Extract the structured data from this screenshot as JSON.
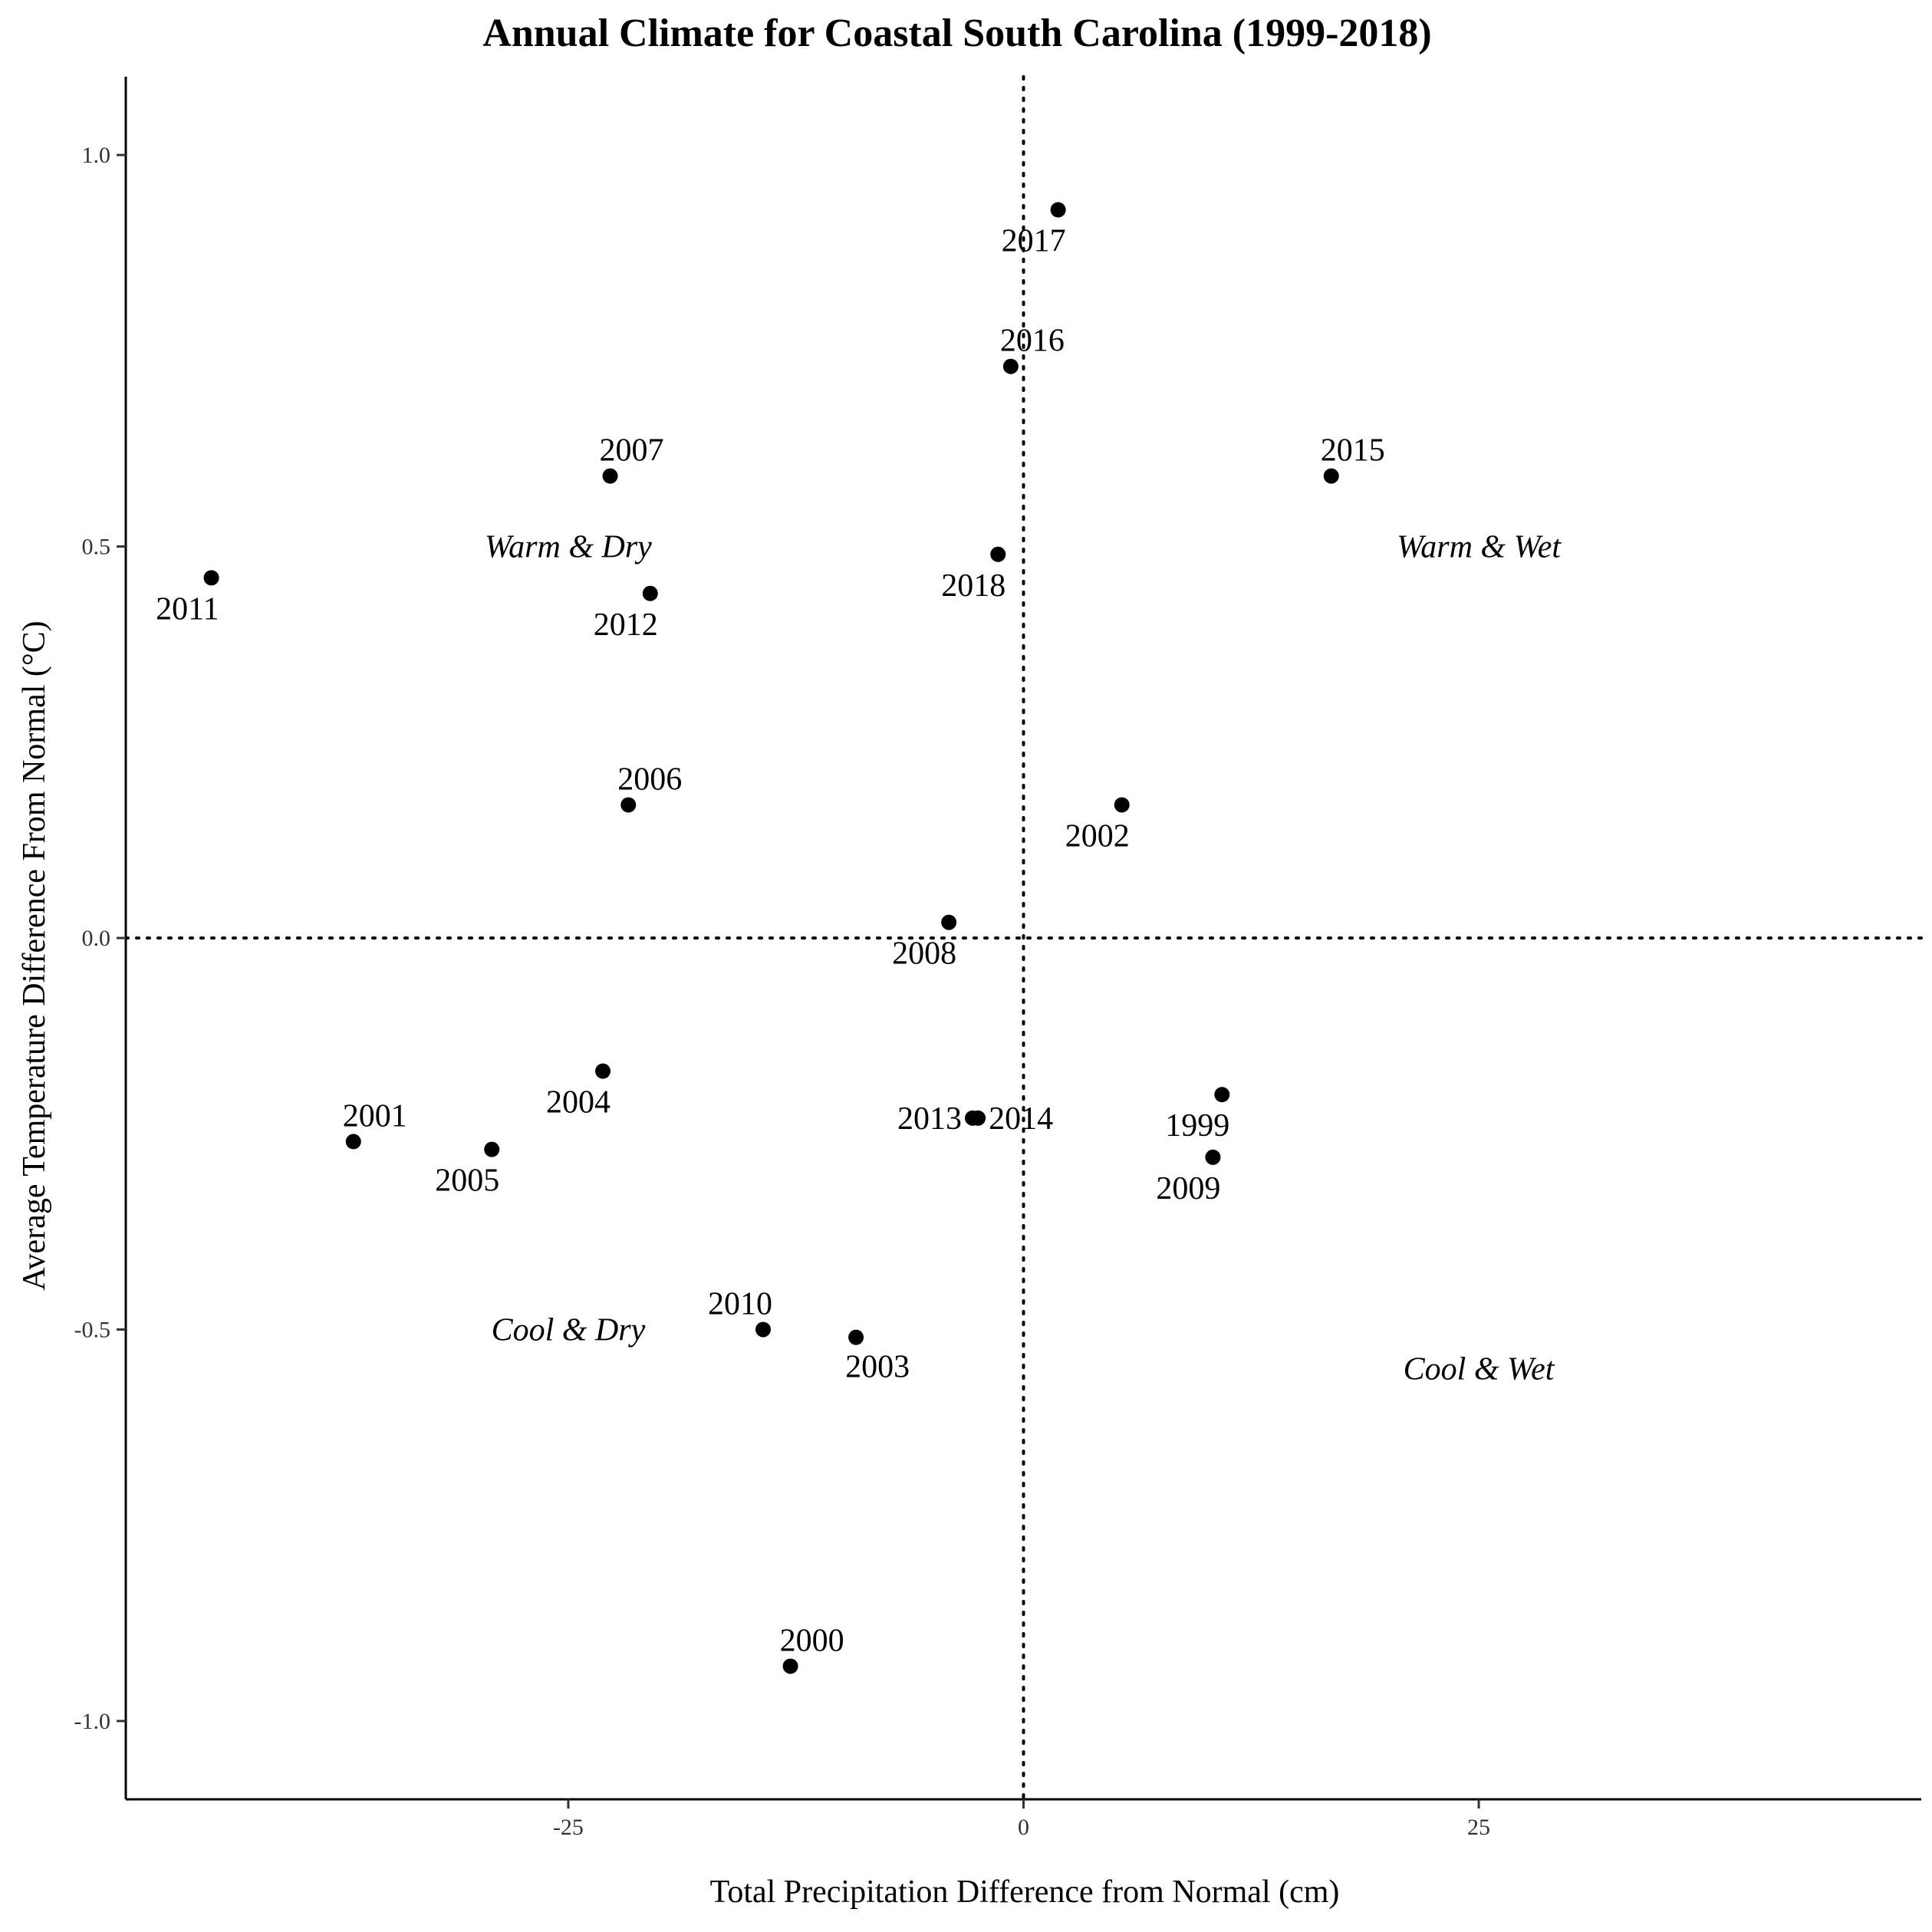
{
  "chart_data": {
    "type": "scatter",
    "title": "Annual Climate for Coastal South Carolina (1999-2018)",
    "xlabel": "Total Precipitation Difference from Normal (cm)",
    "ylabel": "Average Temperature Difference From Normal (°C)",
    "xlim": [
      -49.3,
      49.3
    ],
    "ylim": [
      -1.1,
      1.1
    ],
    "x_ticks": [
      {
        "value": -25,
        "label": "-25"
      },
      {
        "value": 0,
        "label": "0"
      },
      {
        "value": 25,
        "label": "25"
      }
    ],
    "y_ticks": [
      {
        "value": 1.0,
        "label": "1.0"
      },
      {
        "value": 0.5,
        "label": "0.5"
      },
      {
        "value": 0.0,
        "label": "0.0"
      },
      {
        "value": -0.5,
        "label": "-0.5"
      },
      {
        "value": -1.0,
        "label": "-1.0"
      }
    ],
    "reference_lines": {
      "x": 0,
      "y": 0,
      "style": "dotted"
    },
    "grid": false,
    "points": [
      {
        "label": "1999",
        "x": 10.9,
        "y": -0.2,
        "label_pos": "below-left"
      },
      {
        "label": "2000",
        "x": -12.8,
        "y": -0.93,
        "label_pos": "above-right"
      },
      {
        "label": "2001",
        "x": -36.8,
        "y": -0.26,
        "label_pos": "above-right"
      },
      {
        "label": "2002",
        "x": 5.4,
        "y": 0.17,
        "label_pos": "below-left"
      },
      {
        "label": "2003",
        "x": -9.2,
        "y": -0.51,
        "label_pos": "below-right"
      },
      {
        "label": "2004",
        "x": -23.1,
        "y": -0.17,
        "label_pos": "below-left"
      },
      {
        "label": "2005",
        "x": -29.2,
        "y": -0.27,
        "label_pos": "below-left"
      },
      {
        "label": "2006",
        "x": -21.7,
        "y": 0.17,
        "label_pos": "above-right"
      },
      {
        "label": "2007",
        "x": -22.7,
        "y": 0.59,
        "label_pos": "above-right"
      },
      {
        "label": "2008",
        "x": -4.1,
        "y": 0.02,
        "label_pos": "below-left"
      },
      {
        "label": "2009",
        "x": 10.4,
        "y": -0.28,
        "label_pos": "below-left"
      },
      {
        "label": "2010",
        "x": -14.3,
        "y": -0.5,
        "label_pos": "above-left"
      },
      {
        "label": "2011",
        "x": -44.6,
        "y": 0.46,
        "label_pos": "below-left"
      },
      {
        "label": "2012",
        "x": -20.5,
        "y": 0.44,
        "label_pos": "below-left"
      },
      {
        "label": "2013",
        "x": -2.8,
        "y": -0.23,
        "label_pos": "left"
      },
      {
        "label": "2014",
        "x": -2.5,
        "y": -0.23,
        "label_pos": "right"
      },
      {
        "label": "2015",
        "x": 16.9,
        "y": 0.59,
        "label_pos": "above-right"
      },
      {
        "label": "2016",
        "x": -0.7,
        "y": 0.73,
        "label_pos": "above-right"
      },
      {
        "label": "2017",
        "x": 1.9,
        "y": 0.93,
        "label_pos": "below-left"
      },
      {
        "label": "2018",
        "x": -1.4,
        "y": 0.49,
        "label_pos": "below-left"
      }
    ],
    "quadrant_labels": [
      {
        "text": "Warm & Dry",
        "x": -25,
        "y": 0.5
      },
      {
        "text": "Warm & Wet",
        "x": 25,
        "y": 0.5
      },
      {
        "text": "Cool & Dry",
        "x": -25,
        "y": -0.5
      },
      {
        "text": "Cool & Wet",
        "x": 25,
        "y": -0.55
      }
    ]
  }
}
